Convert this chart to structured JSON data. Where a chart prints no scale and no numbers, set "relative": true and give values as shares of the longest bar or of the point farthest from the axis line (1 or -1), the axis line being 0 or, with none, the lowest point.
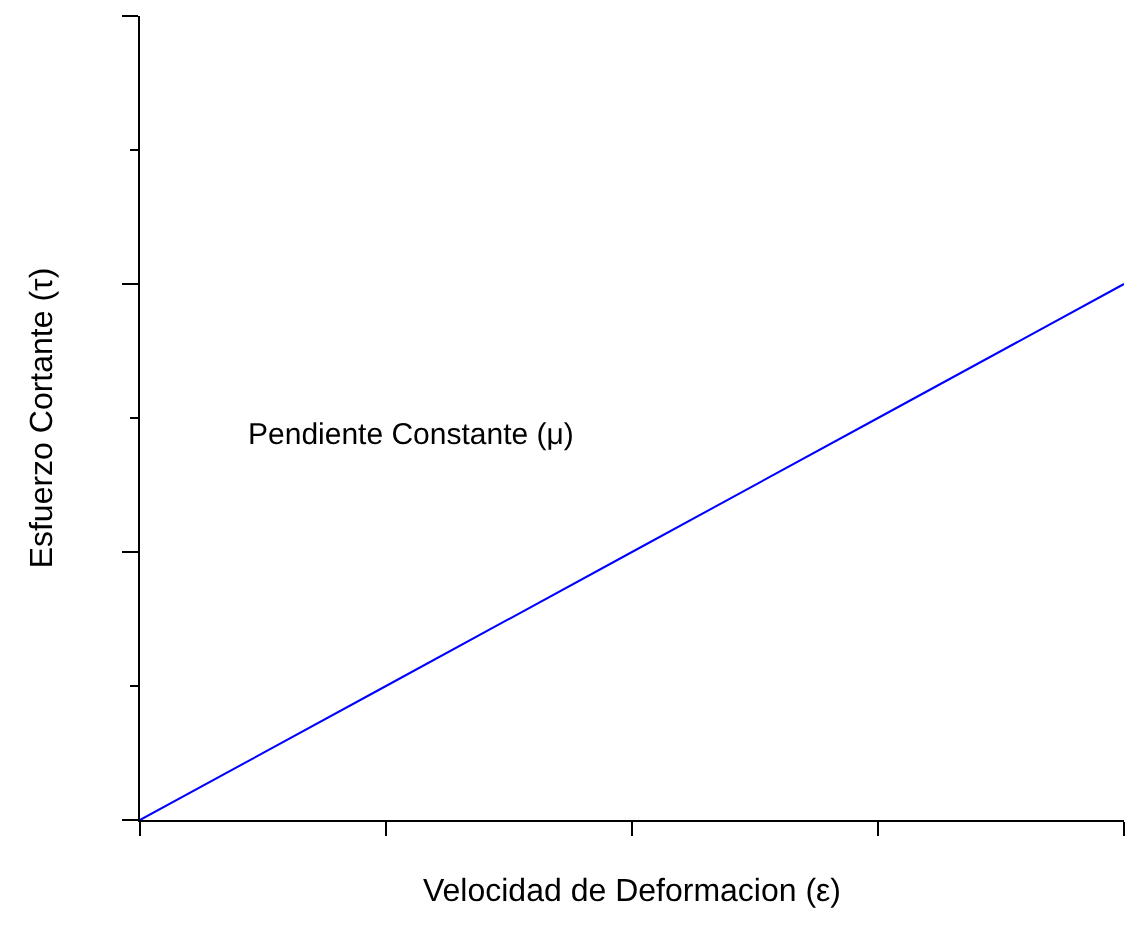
{
  "chart_data": {
    "type": "line",
    "relative": true,
    "xlabel": "Velocidad de Deformacion (ε)",
    "ylabel": "Esfuerzo Cortante (τ)",
    "annotations": [
      "Pendiente Constante (μ)"
    ],
    "categories": [
      null,
      null,
      null,
      null,
      null
    ],
    "series": [
      {
        "color": "#0000ff",
        "values": [
          0,
          0.25,
          0.5,
          0.75,
          1
        ]
      }
    ],
    "marker": "none",
    "line_style": "solid"
  }
}
